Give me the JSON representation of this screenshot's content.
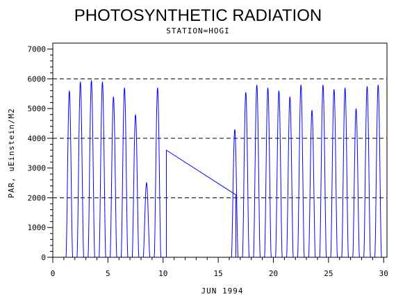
{
  "chart_data": {
    "type": "line",
    "title": "PHOTOSYNTHETIC RADIATION",
    "subtitle": "STATION=HOGI",
    "xlabel": "JUN 1994",
    "ylabel": "PAR, uEinstein/M2",
    "xlim": [
      0,
      30.3
    ],
    "ylim": [
      0,
      7200
    ],
    "x_ticks": [
      0,
      5,
      10,
      15,
      20,
      25,
      30
    ],
    "y_ticks": [
      0,
      1000,
      2000,
      3000,
      4000,
      5000,
      6000,
      7000
    ],
    "reference_lines": [
      2000,
      4000,
      6000
    ],
    "grid": false,
    "legend": "none",
    "line_color": "#0000ff",
    "daily_peaks": [
      {
        "day": 1,
        "peak": 5600
      },
      {
        "day": 2,
        "peak": 5900
      },
      {
        "day": 3,
        "peak": 5950
      },
      {
        "day": 4,
        "peak": 5900
      },
      {
        "day": 5,
        "peak": 5400
      },
      {
        "day": 6,
        "peak": 5700
      },
      {
        "day": 7,
        "peak": 4800
      },
      {
        "day": 8,
        "peak": 2500
      },
      {
        "day": 9,
        "peak": 5700
      },
      {
        "day": 16,
        "peak": 4300
      },
      {
        "day": 17,
        "peak": 5550
      },
      {
        "day": 18,
        "peak": 5800
      },
      {
        "day": 19,
        "peak": 5700
      },
      {
        "day": 20,
        "peak": 5600
      },
      {
        "day": 21,
        "peak": 5400
      },
      {
        "day": 22,
        "peak": 5800
      },
      {
        "day": 23,
        "peak": 4950
      },
      {
        "day": 24,
        "peak": 5800
      },
      {
        "day": 25,
        "peak": 5650
      },
      {
        "day": 26,
        "peak": 5700
      },
      {
        "day": 27,
        "peak": 5000
      },
      {
        "day": 28,
        "peak": 5750
      },
      {
        "day": 29,
        "peak": 5800
      }
    ],
    "gap_segment": [
      {
        "x": 10.3,
        "y": 3600
      },
      {
        "x": 16.6,
        "y": 2100
      }
    ]
  }
}
